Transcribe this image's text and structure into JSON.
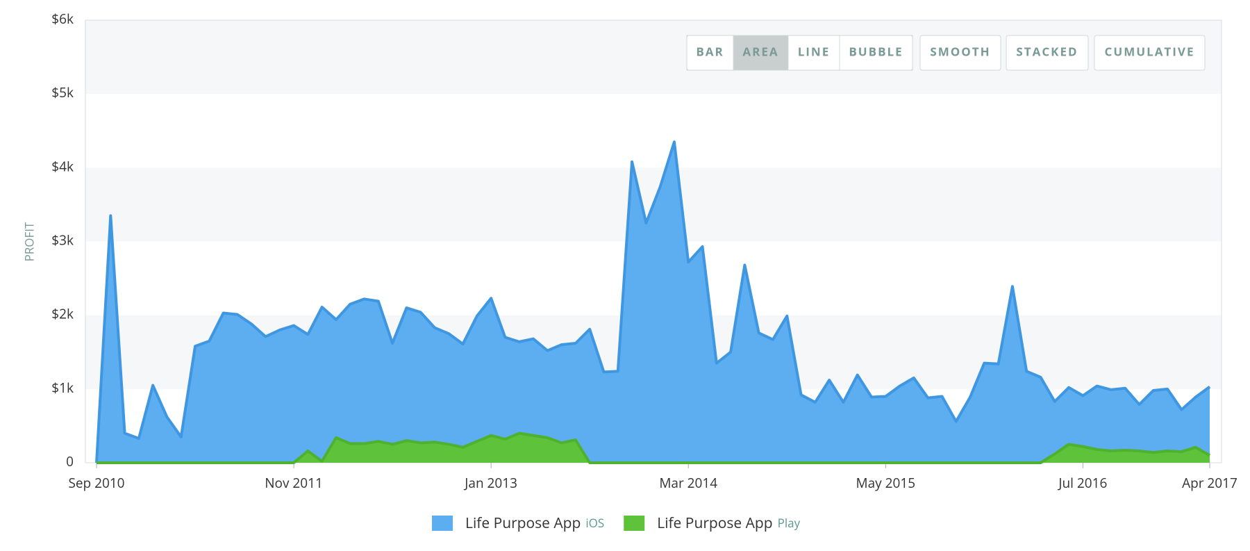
{
  "toolbar": [
    {
      "label": "BAR"
    },
    {
      "label": "AREA",
      "active": true
    },
    {
      "label": "LINE"
    },
    {
      "label": "BUBBLE",
      "disabled": true
    },
    {
      "label": "SMOOTH"
    },
    {
      "label": "STACKED"
    },
    {
      "label": "CUMULATIVE"
    }
  ],
  "chart_data": {
    "type": "area",
    "ylabel": "PROFIT",
    "x": [
      "2010-09",
      "2010-10",
      "2010-11",
      "2010-12",
      "2011-01",
      "2011-02",
      "2011-03",
      "2011-04",
      "2011-05",
      "2011-06",
      "2011-07",
      "2011-08",
      "2011-09",
      "2011-10",
      "2011-11",
      "2011-12",
      "2012-01",
      "2012-02",
      "2012-03",
      "2012-04",
      "2012-05",
      "2012-06",
      "2012-07",
      "2012-08",
      "2012-09",
      "2012-10",
      "2012-11",
      "2012-12",
      "2013-01",
      "2013-02",
      "2013-03",
      "2013-04",
      "2013-05",
      "2013-06",
      "2013-07",
      "2013-08",
      "2013-09",
      "2013-10",
      "2013-11",
      "2013-12",
      "2014-01",
      "2014-02",
      "2014-03",
      "2014-04",
      "2014-05",
      "2014-06",
      "2014-07",
      "2014-08",
      "2014-09",
      "2014-10",
      "2014-11",
      "2014-12",
      "2015-01",
      "2015-02",
      "2015-03",
      "2015-04",
      "2015-05",
      "2015-06",
      "2015-07",
      "2015-08",
      "2015-09",
      "2015-10",
      "2015-11",
      "2015-12",
      "2016-01",
      "2016-02",
      "2016-03",
      "2016-04",
      "2016-05",
      "2016-06",
      "2016-07",
      "2016-08",
      "2016-09",
      "2016-10",
      "2016-11",
      "2016-12",
      "2017-01",
      "2017-02",
      "2017-03",
      "2017-04"
    ],
    "series": [
      {
        "name": "Life Purpose App",
        "tag": "iOS",
        "color": "#5caef0",
        "stroke": "#3f97e2",
        "values": [
          0,
          3350,
          400,
          330,
          1050,
          620,
          350,
          1580,
          1650,
          2030,
          2010,
          1880,
          1710,
          1800,
          1860,
          1740,
          2110,
          1940,
          2150,
          2220,
          2190,
          1620,
          2100,
          2040,
          1830,
          1750,
          1610,
          1990,
          2230,
          1700,
          1640,
          1680,
          1520,
          1600,
          1620,
          1810,
          1230,
          1240,
          4080,
          3250,
          3740,
          4350,
          2720,
          2930,
          1350,
          1500,
          2680,
          1760,
          1670,
          1990,
          920,
          820,
          1120,
          820,
          1190,
          890,
          900,
          1040,
          1150,
          880,
          900,
          560,
          890,
          1350,
          1340,
          2390,
          1240,
          1160,
          830,
          1020,
          910,
          1040,
          990,
          1010,
          790,
          980,
          1000,
          720,
          890,
          1030
        ]
      },
      {
        "name": "Life Purpose App",
        "tag": "Play",
        "color": "#5ec23b",
        "stroke": "#4fb22e",
        "values": [
          0,
          0,
          0,
          0,
          0,
          0,
          0,
          0,
          0,
          0,
          0,
          0,
          0,
          0,
          0,
          160,
          20,
          340,
          260,
          260,
          290,
          250,
          300,
          270,
          280,
          250,
          210,
          290,
          370,
          320,
          400,
          370,
          340,
          270,
          310,
          0,
          0,
          0,
          0,
          0,
          0,
          0,
          0,
          0,
          0,
          0,
          0,
          0,
          0,
          0,
          0,
          0,
          0,
          0,
          0,
          0,
          0,
          0,
          0,
          0,
          0,
          0,
          0,
          0,
          0,
          0,
          0,
          0,
          120,
          250,
          220,
          180,
          160,
          170,
          160,
          140,
          160,
          150,
          210,
          100
        ]
      }
    ],
    "ylim": [
      0,
      6000
    ],
    "yticks": [
      0,
      {
        "value": 1000,
        "label": "$1k"
      },
      {
        "value": 2000,
        "label": "$2k"
      },
      {
        "value": 3000,
        "label": "$3k"
      },
      {
        "value": 4000,
        "label": "$4k"
      },
      {
        "value": 5000,
        "label": "$5k"
      },
      {
        "value": 6000,
        "label": "$6k"
      }
    ],
    "xticks": [
      {
        "value": "2010-09",
        "label": "Sep 2010"
      },
      {
        "value": "2011-11",
        "label": "Nov 2011"
      },
      {
        "value": "2013-01",
        "label": "Jan 2013"
      },
      {
        "value": "2014-03",
        "label": "Mar 2014"
      },
      {
        "value": "2015-05",
        "label": "May 2015"
      },
      {
        "value": "2016-07",
        "label": "Jul 2016"
      },
      {
        "value": "2017-04",
        "label": "Apr 2017"
      }
    ]
  }
}
